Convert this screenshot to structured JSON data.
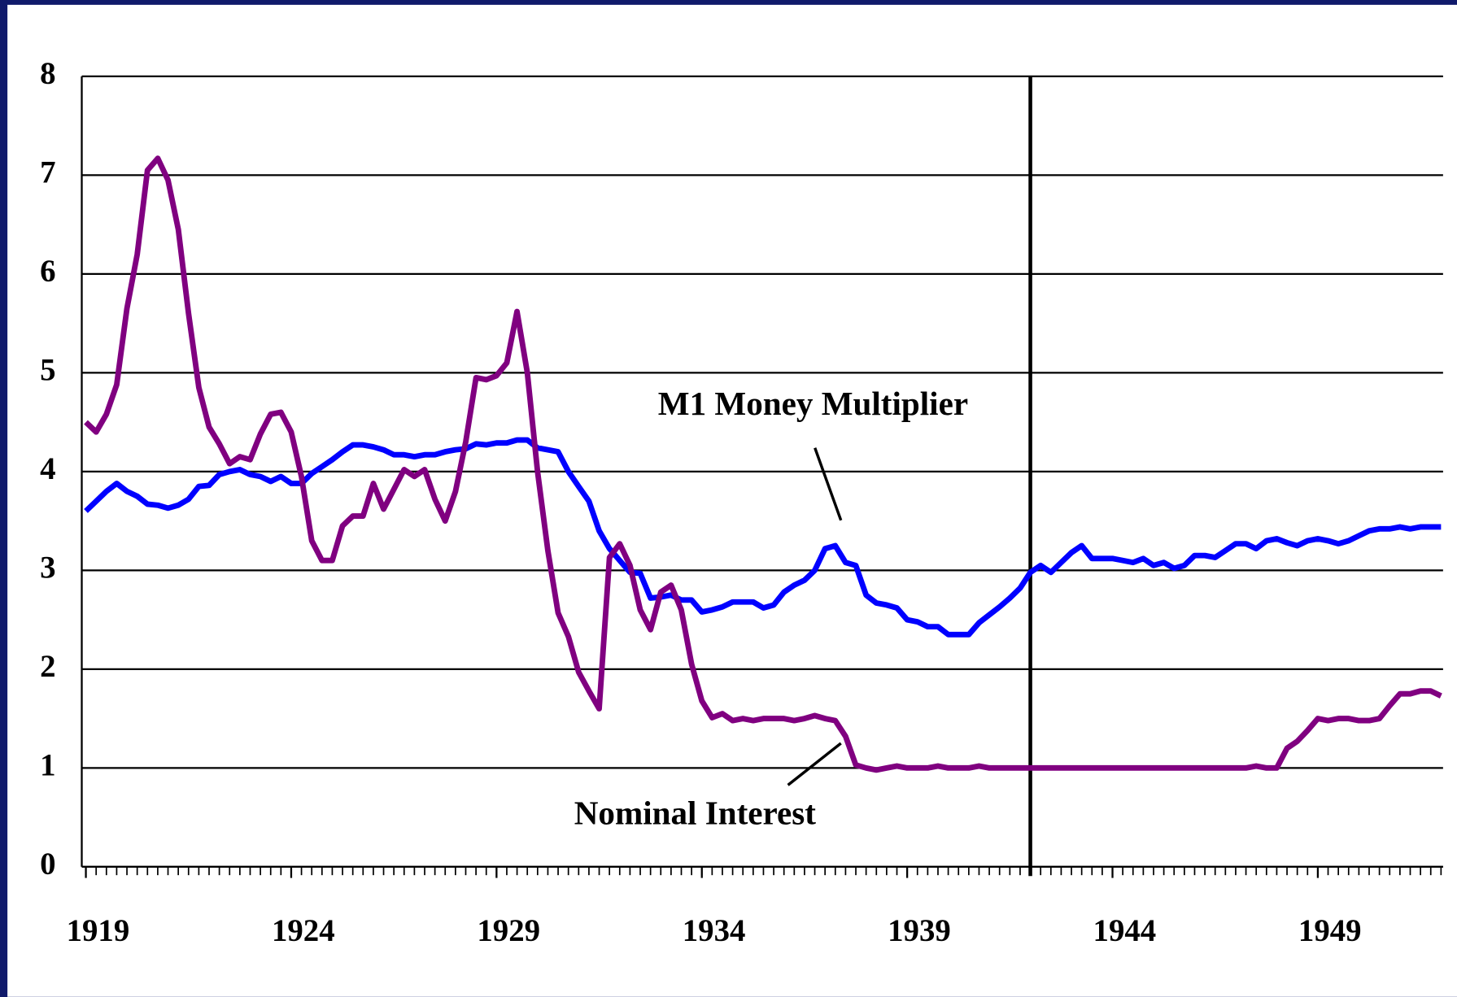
{
  "chart_data": {
    "type": "line",
    "x": [
      1919,
      1919.25,
      1919.5,
      1919.75,
      1920,
      1920.25,
      1920.5,
      1920.75,
      1921,
      1921.25,
      1921.5,
      1921.75,
      1922,
      1922.25,
      1922.5,
      1922.75,
      1923,
      1923.25,
      1923.5,
      1923.75,
      1924,
      1924.25,
      1924.5,
      1924.75,
      1925,
      1925.25,
      1925.5,
      1925.75,
      1926,
      1926.25,
      1926.5,
      1926.75,
      1927,
      1927.25,
      1927.5,
      1927.75,
      1928,
      1928.25,
      1928.5,
      1928.75,
      1929,
      1929.25,
      1929.5,
      1929.75,
      1930,
      1930.25,
      1930.5,
      1930.75,
      1931,
      1931.25,
      1931.5,
      1931.75,
      1932,
      1932.25,
      1932.5,
      1932.75,
      1933,
      1933.25,
      1933.5,
      1933.75,
      1934,
      1934.25,
      1934.5,
      1934.75,
      1935,
      1935.25,
      1935.5,
      1935.75,
      1936,
      1936.25,
      1936.5,
      1936.75,
      1937,
      1937.25,
      1937.5,
      1937.75,
      1938,
      1938.25,
      1938.5,
      1938.75,
      1939,
      1939.25,
      1939.5,
      1939.75,
      1940,
      1940.25,
      1940.5,
      1940.75,
      1941,
      1941.25,
      1941.5,
      1941.75,
      1942,
      1942.25,
      1942.5,
      1942.75,
      1943,
      1943.25,
      1943.5,
      1943.75,
      1944,
      1944.25,
      1944.5,
      1944.75,
      1945,
      1945.25,
      1945.5,
      1945.75,
      1946,
      1946.25,
      1946.5,
      1946.75,
      1947,
      1947.25,
      1947.5,
      1947.75,
      1948,
      1948.25,
      1948.5,
      1948.75,
      1949,
      1949.25,
      1949.5,
      1949.75,
      1950,
      1950.25,
      1950.5,
      1950.75,
      1951,
      1951.25,
      1951.5,
      1951.75,
      1952
    ],
    "series": [
      {
        "color": "#0000ff",
        "values": [
          3.6,
          3.7,
          3.8,
          3.88,
          3.8,
          3.75,
          3.67,
          3.66,
          3.63,
          3.66,
          3.72,
          3.85,
          3.86,
          3.97,
          4.0,
          4.02,
          3.97,
          3.95,
          3.9,
          3.95,
          3.88,
          3.88,
          3.98,
          4.05,
          4.12,
          4.2,
          4.27,
          4.27,
          4.25,
          4.22,
          4.17,
          4.17,
          4.15,
          4.17,
          4.17,
          4.2,
          4.22,
          4.23,
          4.28,
          4.27,
          4.29,
          4.29,
          4.32,
          4.32,
          4.24,
          4.22,
          4.2,
          4.0,
          3.85,
          3.7,
          3.4,
          3.22,
          3.1,
          2.98,
          2.97,
          2.72,
          2.73,
          2.75,
          2.7,
          2.7,
          2.58,
          2.6,
          2.63,
          2.68,
          2.68,
          2.68,
          2.62,
          2.65,
          2.78,
          2.85,
          2.9,
          3.0,
          3.22,
          3.25,
          3.08,
          3.05,
          2.75,
          2.67,
          2.65,
          2.62,
          2.5,
          2.48,
          2.43,
          2.43,
          2.35,
          2.35,
          2.35,
          2.47,
          2.55,
          2.63,
          2.72,
          2.82,
          2.98,
          3.05,
          2.98,
          3.08,
          3.18,
          3.25,
          3.12,
          3.12,
          3.12,
          3.1,
          3.08,
          3.12,
          3.05,
          3.08,
          3.02,
          3.05,
          3.15,
          3.15,
          3.13,
          3.2,
          3.27,
          3.27,
          3.22,
          3.3,
          3.32,
          3.28,
          3.25,
          3.3,
          3.32,
          3.3,
          3.27,
          3.3,
          3.35,
          3.4,
          3.42,
          3.42,
          3.44,
          3.42,
          3.44,
          3.44,
          3.44
        ]
      },
      {
        "color": "#800080",
        "values": [
          4.5,
          4.4,
          4.58,
          4.88,
          5.65,
          6.2,
          7.05,
          7.17,
          6.95,
          6.45,
          5.6,
          4.85,
          4.45,
          4.28,
          4.08,
          4.15,
          4.12,
          4.38,
          4.58,
          4.6,
          4.4,
          3.95,
          3.3,
          3.1,
          3.1,
          3.45,
          3.55,
          3.55,
          3.88,
          3.62,
          3.82,
          4.02,
          3.95,
          4.02,
          3.72,
          3.5,
          3.8,
          4.3,
          4.95,
          4.93,
          4.97,
          5.1,
          5.62,
          5.0,
          4.0,
          3.2,
          2.57,
          2.33,
          1.97,
          1.78,
          1.6,
          3.13,
          3.27,
          3.05,
          2.6,
          2.4,
          2.78,
          2.85,
          2.6,
          2.05,
          1.68,
          1.51,
          1.55,
          1.48,
          1.5,
          1.48,
          1.5,
          1.5,
          1.5,
          1.48,
          1.5,
          1.53,
          1.5,
          1.48,
          1.32,
          1.03,
          1.0,
          0.98,
          1.0,
          1.02,
          1.0,
          1.0,
          1.0,
          1.02,
          1.0,
          1.0,
          1.0,
          1.02,
          1.0,
          1.0,
          1.0,
          1.0,
          1.0,
          1.0,
          1.0,
          1.0,
          1.0,
          1.0,
          1.0,
          1.0,
          1.0,
          1.0,
          1.0,
          1.0,
          1.0,
          1.0,
          1.0,
          1.0,
          1.0,
          1.0,
          1.0,
          1.0,
          1.0,
          1.0,
          1.02,
          1.0,
          1.0,
          1.2,
          1.27,
          1.38,
          1.5,
          1.48,
          1.5,
          1.5,
          1.48,
          1.48,
          1.5,
          1.63,
          1.75,
          1.75,
          1.78,
          1.78,
          1.73
        ]
      }
    ],
    "annotations": [
      "M1 Money Multiplier",
      "Nominal Interest"
    ],
    "reference_line_x": 1942,
    "xlim": [
      1918.9,
      1952.05
    ],
    "xticks": [
      1919,
      1924,
      1929,
      1934,
      1939,
      1944,
      1949
    ],
    "ylim": [
      0,
      8
    ],
    "yticks": [
      0,
      1,
      2,
      3,
      4,
      5,
      6,
      7,
      8
    ],
    "grid": true
  }
}
